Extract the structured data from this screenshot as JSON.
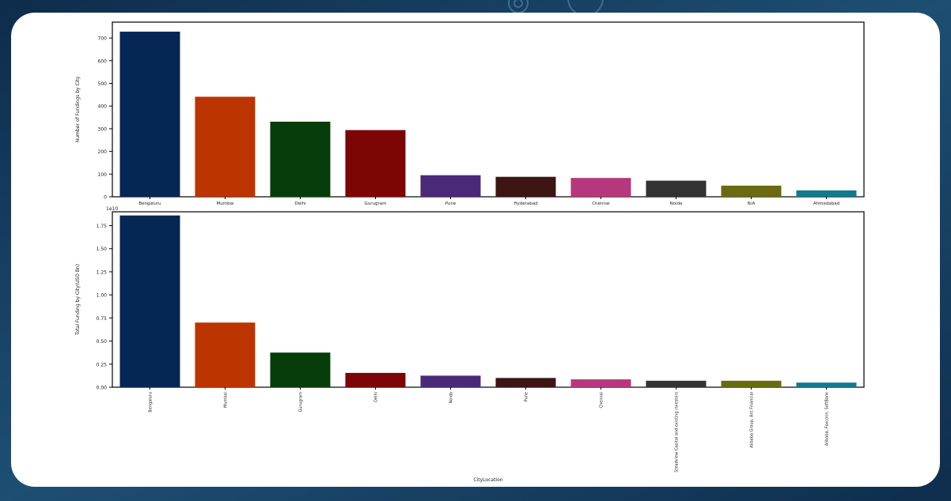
{
  "colors": {
    "bars": [
      "#062654",
      "#bc3400",
      "#073d0b",
      "#7c0505",
      "#4a2a78",
      "#3d1515",
      "#b5387c",
      "#323232",
      "#6a6a10",
      "#117a8c"
    ],
    "page_background": "#143a5c",
    "card_background": "#ffffff"
  },
  "chart_data": [
    {
      "type": "bar",
      "categories": [
        "Bengaluru",
        "Mumbai",
        "Delhi",
        "Gurugram",
        "Pune",
        "Hyderabad",
        "Chennai",
        "Noida",
        "N/A",
        "Ahmedabad"
      ],
      "values": [
        728,
        441,
        331,
        294,
        95,
        88,
        83,
        71,
        49,
        28
      ],
      "ylabel": "Number of Fundings by City",
      "xlabel": "",
      "ylim": [
        0,
        770
      ],
      "yticks": [
        0,
        100,
        200,
        300,
        400,
        500,
        600,
        700
      ],
      "ytick_labels": [
        "0",
        "100",
        "200",
        "300",
        "400",
        "500",
        "600",
        "700"
      ],
      "grid": false
    },
    {
      "type": "bar",
      "categories": [
        "Bengaluru",
        "Mumbai",
        "Gurugram",
        "Delhi",
        "Noida",
        "Pune",
        "Chennai",
        "Steadview Capital and existing investors",
        "Alibaba Group, Ant Financial",
        "Alibaba, Foxconn, SoftBank"
      ],
      "values": [
        1.86,
        0.7,
        0.375,
        0.155,
        0.125,
        0.1,
        0.085,
        0.07,
        0.07,
        0.05
      ],
      "scale_label": "1e10",
      "ylabel": "Total Funding by City(USD Bn)",
      "xlabel": "CityLocation",
      "ylim": [
        0,
        1.9
      ],
      "yticks": [
        0,
        0.25,
        0.5,
        0.75,
        1.0,
        1.25,
        1.5,
        1.75
      ],
      "ytick_labels": [
        "0.00",
        "0.25",
        "0.50",
        "0.75",
        "1.00",
        "1.25",
        "1.50",
        "1.75"
      ],
      "grid": false
    }
  ]
}
